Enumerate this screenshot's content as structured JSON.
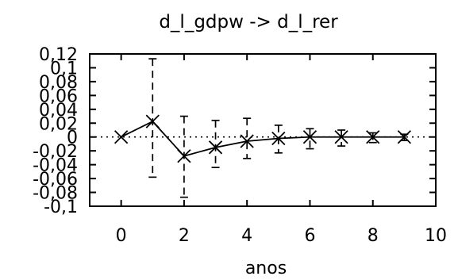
{
  "chart_data": {
    "type": "line",
    "title": "d_l_gdpw -> d_l_rer",
    "xlabel": "anos",
    "ylabel": "",
    "xlim": [
      -1,
      10
    ],
    "ylim": [
      -0.1,
      0.12
    ],
    "x_ticks": [
      0,
      2,
      4,
      6,
      8,
      10
    ],
    "x_tick_labels": [
      "0",
      "2",
      "4",
      "6",
      "8",
      "10"
    ],
    "y_ticks": [
      -0.1,
      -0.08,
      -0.06,
      -0.04,
      -0.02,
      0,
      0.02,
      0.04,
      0.06,
      0.08,
      0.1,
      0.12
    ],
    "y_tick_labels": [
      "-0,1",
      "-0,08",
      "-0,06",
      "-0,04",
      "-0,02",
      "0",
      "0,02",
      "0,04",
      "0,06",
      "0,08",
      "0,1",
      "0,12"
    ],
    "zero_line": true,
    "grid": false,
    "series": [
      {
        "type": "line",
        "marker": "x",
        "x": [
          0,
          1,
          2,
          3,
          4,
          5,
          6,
          7,
          8,
          9
        ],
        "values": [
          0,
          0.0225,
          -0.0275,
          -0.015,
          -0.006,
          -0.002,
          0,
          0,
          0,
          0
        ],
        "color": "#000000"
      }
    ],
    "error_bars": {
      "x": [
        1,
        2,
        3,
        4,
        5,
        6,
        7,
        8,
        9
      ],
      "lower": [
        -0.058,
        -0.087,
        -0.044,
        -0.031,
        -0.023,
        -0.017,
        -0.013,
        -0.008,
        -0.005
      ],
      "upper": [
        0.113,
        0.03,
        0.024,
        0.027,
        0.017,
        0.012,
        0.01,
        0.006,
        0.004
      ],
      "style": "dashed",
      "color": "#000000"
    }
  }
}
